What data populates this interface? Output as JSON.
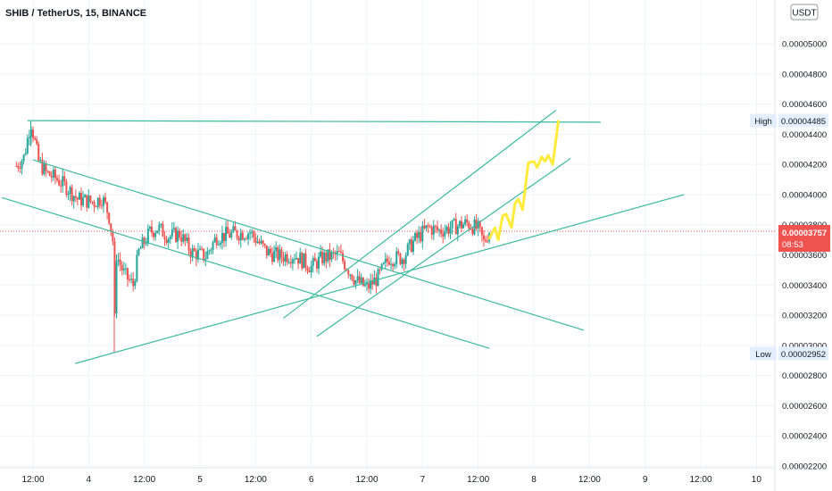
{
  "header": {
    "symbol": "SHIB / TetherUS, 15, BINANCE"
  },
  "currency_badge": "USDT",
  "price_badge": {
    "price": "0.00003757",
    "countdown": "08:53"
  },
  "markers": {
    "high": {
      "label": "High",
      "value": "0.00004485"
    },
    "low": {
      "label": "Low",
      "value": "0.00002952"
    }
  },
  "colors": {
    "bull": "#26a69a",
    "bear": "#ef5350",
    "trendline": "#3cba9f",
    "projection": "#ffeb3b",
    "price_tag": "#ef5350",
    "grid": "#f0f3fa",
    "text": "#131722",
    "axis_text": "#6b6f7a"
  },
  "chart_data": {
    "type": "candlestick",
    "title": "SHIB / TetherUS, 15, BINANCE",
    "y_axis": {
      "position": "right",
      "ticks": [
        "0.00005000",
        "0.00004800",
        "0.00004600",
        "0.00004400",
        "0.00004200",
        "0.00004000",
        "0.00003800",
        "0.00003600",
        "0.00003400",
        "0.00003200",
        "0.00003000",
        "0.00002800",
        "0.00002600",
        "0.00002400",
        "0.00002200"
      ]
    },
    "x_axis": {
      "ticks": [
        "12:00",
        "4",
        "12:00",
        "5",
        "12:00",
        "6",
        "12:00",
        "7",
        "12:00",
        "8",
        "12:00",
        "9",
        "12:00",
        "10"
      ]
    },
    "current_price": 3.757e-05,
    "series_high": 4.485e-05,
    "series_low": 2.952e-05,
    "price_path": [
      {
        "day": 3.35,
        "price": 4.19e-05
      },
      {
        "day": 3.42,
        "price": 4.25e-05
      },
      {
        "day": 3.48,
        "price": 4.485e-05
      },
      {
        "day": 3.55,
        "price": 4.22e-05
      },
      {
        "day": 3.62,
        "price": 4.14e-05
      },
      {
        "day": 3.7,
        "price": 4.11e-05
      },
      {
        "day": 3.8,
        "price": 4.05e-05
      },
      {
        "day": 3.9,
        "price": 3.97e-05
      },
      {
        "day": 4.05,
        "price": 3.95e-05
      },
      {
        "day": 4.12,
        "price": 3.98e-05
      },
      {
        "day": 4.18,
        "price": 3.87e-05
      },
      {
        "day": 4.22,
        "price": 3.68e-05
      },
      {
        "day": 4.23,
        "price": 3.08e-05
      },
      {
        "day": 4.25,
        "price": 3.6e-05
      },
      {
        "day": 4.32,
        "price": 3.47e-05
      },
      {
        "day": 4.4,
        "price": 3.4e-05
      },
      {
        "day": 4.45,
        "price": 3.62e-05
      },
      {
        "day": 4.55,
        "price": 3.75e-05
      },
      {
        "day": 4.62,
        "price": 3.78e-05
      },
      {
        "day": 4.72,
        "price": 3.72e-05
      },
      {
        "day": 4.82,
        "price": 3.74e-05
      },
      {
        "day": 4.92,
        "price": 3.62e-05
      },
      {
        "day": 5.05,
        "price": 3.59e-05
      },
      {
        "day": 5.15,
        "price": 3.72e-05
      },
      {
        "day": 5.3,
        "price": 3.74e-05
      },
      {
        "day": 5.45,
        "price": 3.75e-05
      },
      {
        "day": 5.6,
        "price": 3.62e-05
      },
      {
        "day": 5.72,
        "price": 3.59e-05
      },
      {
        "day": 5.85,
        "price": 3.6e-05
      },
      {
        "day": 6.0,
        "price": 3.52e-05
      },
      {
        "day": 6.1,
        "price": 3.58e-05
      },
      {
        "day": 6.25,
        "price": 3.6e-05
      },
      {
        "day": 6.4,
        "price": 3.43e-05
      },
      {
        "day": 6.5,
        "price": 3.38e-05
      },
      {
        "day": 6.6,
        "price": 3.45e-05
      },
      {
        "day": 6.7,
        "price": 3.58e-05
      },
      {
        "day": 6.82,
        "price": 3.58e-05
      },
      {
        "day": 6.92,
        "price": 3.69e-05
      },
      {
        "day": 7.05,
        "price": 3.78e-05
      },
      {
        "day": 7.15,
        "price": 3.76e-05
      },
      {
        "day": 7.3,
        "price": 3.79e-05
      },
      {
        "day": 7.4,
        "price": 3.81e-05
      },
      {
        "day": 7.5,
        "price": 3.77e-05
      },
      {
        "day": 7.55,
        "price": 3.68e-05
      },
      {
        "day": 7.6,
        "price": 3.76e-05
      }
    ],
    "trendlines": [
      {
        "from": {
          "day": 3.45,
          "price": 4.49e-05
        },
        "to": {
          "day": 8.6,
          "price": 4.48e-05
        }
      },
      {
        "from": {
          "day": 3.5,
          "price": 4.23e-05
        },
        "to": {
          "day": 8.45,
          "price": 3.1e-05
        }
      },
      {
        "from": {
          "day": 3.22,
          "price": 3.98e-05
        },
        "to": {
          "day": 7.6,
          "price": 2.98e-05
        }
      },
      {
        "from": {
          "day": 3.88,
          "price": 2.88e-05
        },
        "to": {
          "day": 9.35,
          "price": 4e-05
        }
      },
      {
        "from": {
          "day": 5.75,
          "price": 3.18e-05
        },
        "to": {
          "day": 8.2,
          "price": 4.56e-05
        }
      },
      {
        "from": {
          "day": 6.05,
          "price": 3.06e-05
        },
        "to": {
          "day": 8.33,
          "price": 4.24e-05
        }
      }
    ],
    "projection_path": [
      {
        "day": 7.6,
        "price": 3.71e-05
      },
      {
        "day": 7.65,
        "price": 3.78e-05
      },
      {
        "day": 7.68,
        "price": 3.7e-05
      },
      {
        "day": 7.72,
        "price": 3.86e-05
      },
      {
        "day": 7.75,
        "price": 3.87e-05
      },
      {
        "day": 7.8,
        "price": 3.78e-05
      },
      {
        "day": 7.83,
        "price": 3.94e-05
      },
      {
        "day": 7.86,
        "price": 3.97e-05
      },
      {
        "day": 7.9,
        "price": 3.9e-05
      },
      {
        "day": 7.95,
        "price": 4.21e-05
      },
      {
        "day": 8.0,
        "price": 4.22e-05
      },
      {
        "day": 8.03,
        "price": 4.18e-05
      },
      {
        "day": 8.07,
        "price": 4.25e-05
      },
      {
        "day": 8.1,
        "price": 4.22e-05
      },
      {
        "day": 8.13,
        "price": 4.26e-05
      },
      {
        "day": 8.17,
        "price": 4.2e-05
      },
      {
        "day": 8.22,
        "price": 4.485e-05
      }
    ]
  }
}
